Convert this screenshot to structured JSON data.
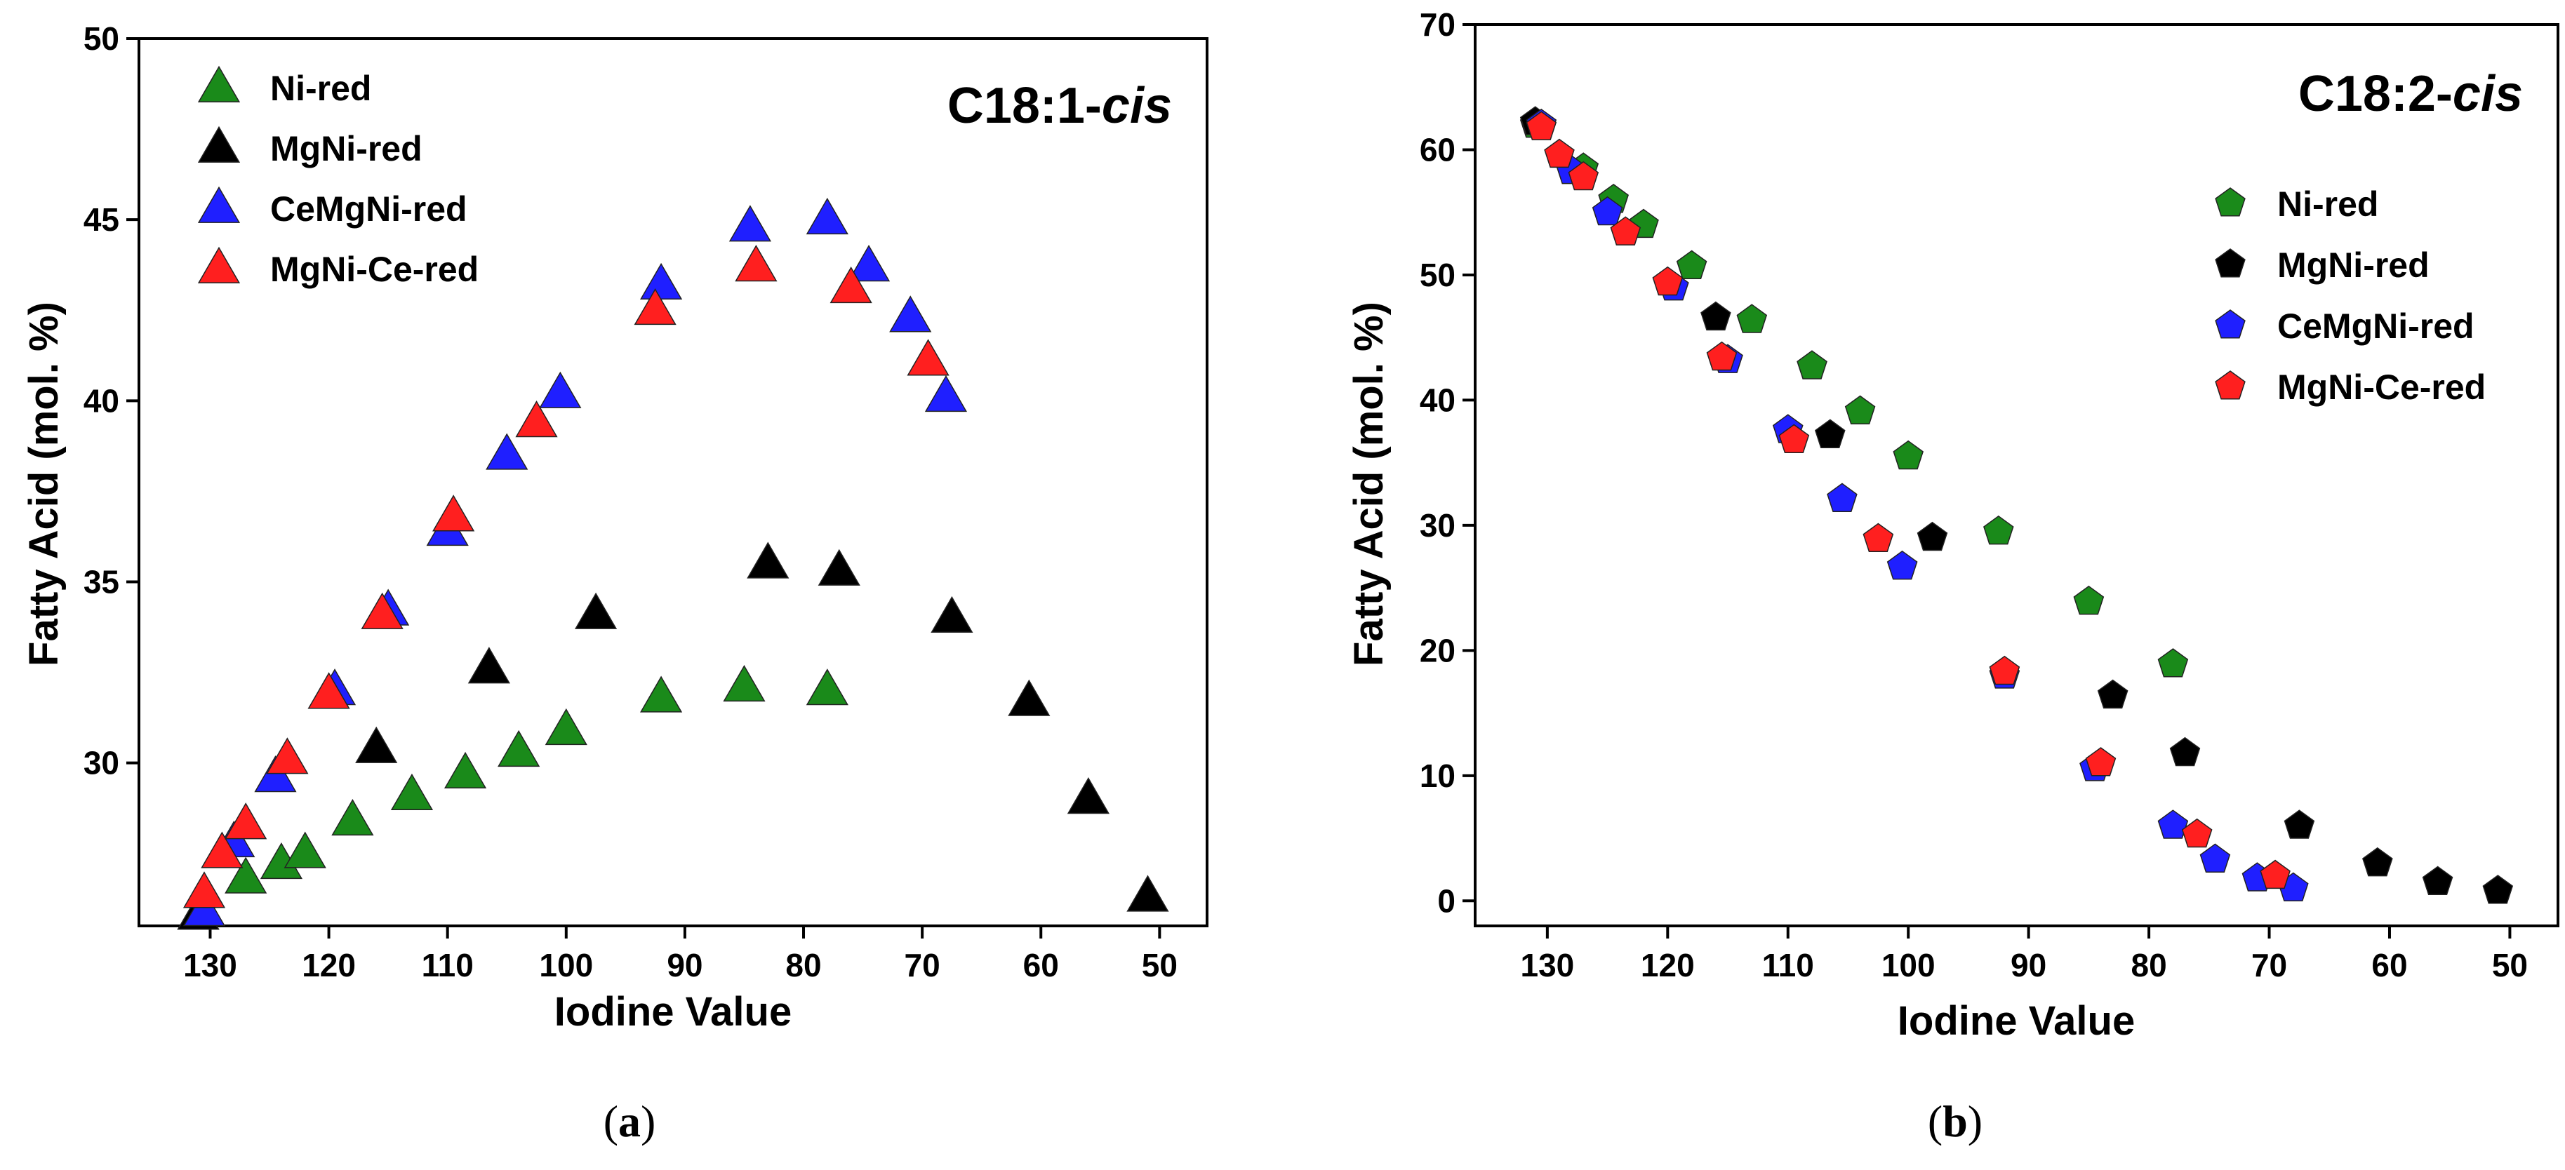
{
  "chart_data": [
    {
      "type": "scatter",
      "panel_label": "a",
      "title_main": "C18:1-",
      "title_italic": "cis",
      "xlabel": "Iodine Value",
      "ylabel": "Fatty Acid (mol. %)",
      "xlim": [
        136,
        46
      ],
      "ylim": [
        25.5,
        50
      ],
      "xticks": [
        130,
        120,
        110,
        100,
        90,
        80,
        70,
        60,
        50
      ],
      "yticks": [
        30,
        35,
        40,
        45,
        50
      ],
      "marker": "triangle",
      "legend_position": "top-left",
      "series": [
        {
          "name": "Ni-red",
          "color": "#1a8a1a",
          "x": [
            131,
            127,
            124,
            122,
            118,
            113,
            108.5,
            104,
            100,
            92,
            85,
            78
          ],
          "y": [
            25.8,
            26.8,
            27.2,
            27.5,
            28.4,
            29.1,
            29.7,
            30.3,
            30.9,
            31.8,
            32.1,
            32.0
          ]
        },
        {
          "name": "MgNi-red",
          "color": "#000000",
          "x": [
            131,
            116,
            106.5,
            97.5,
            83,
            77,
            67.5,
            61,
            56,
            51
          ],
          "y": [
            25.8,
            30.4,
            32.6,
            34.1,
            35.5,
            35.3,
            34.0,
            31.7,
            29.0,
            26.3
          ]
        },
        {
          "name": "CeMgNi-red",
          "color": "#1f1fff",
          "x": [
            130.5,
            128,
            124.5,
            119.5,
            115,
            110,
            105,
            100.5,
            92,
            84.5,
            78,
            74.5,
            71,
            68
          ],
          "y": [
            25.9,
            27.8,
            29.6,
            32.0,
            34.2,
            36.4,
            38.5,
            40.2,
            43.2,
            44.8,
            45.0,
            43.7,
            42.3,
            40.1
          ]
        },
        {
          "name": "MgNi-Ce-red",
          "color": "#ff1f1f",
          "x": [
            130.5,
            129,
            127,
            123.5,
            120,
            115.5,
            109.5,
            102.5,
            92.5,
            84,
            76,
            69.5
          ],
          "y": [
            26.4,
            27.5,
            28.3,
            30.1,
            31.9,
            34.1,
            36.8,
            39.4,
            42.5,
            43.7,
            43.1,
            41.1
          ]
        }
      ]
    },
    {
      "type": "scatter",
      "panel_label": "b",
      "title_main": "C18:2-",
      "title_italic": "cis",
      "xlabel": "Iodine Value",
      "ylabel": "Fatty Acid (mol. %)",
      "xlim": [
        136,
        46
      ],
      "ylim": [
        -2,
        70
      ],
      "xticks": [
        130,
        120,
        110,
        100,
        90,
        80,
        70,
        60,
        50
      ],
      "yticks": [
        0,
        10,
        20,
        30,
        40,
        50,
        60,
        70
      ],
      "marker": "pentagon",
      "legend_position": "center-right",
      "series": [
        {
          "name": "Ni-red",
          "color": "#1a8a1a",
          "x": [
            131,
            127,
            124.5,
            122,
            118,
            113,
            108,
            104,
            100,
            92.5,
            85,
            78
          ],
          "y": [
            62.0,
            58.5,
            56.0,
            54.0,
            50.7,
            46.4,
            42.7,
            39.1,
            35.5,
            29.5,
            23.9,
            18.9
          ]
        },
        {
          "name": "MgNi-red",
          "color": "#000000",
          "x": [
            131,
            116,
            106.5,
            98,
            83,
            77,
            67.5,
            61,
            56,
            51
          ],
          "y": [
            62.2,
            46.6,
            37.2,
            29.0,
            16.4,
            11.8,
            6.0,
            3.0,
            1.5,
            0.8
          ]
        },
        {
          "name": "CeMgNi-red",
          "color": "#1f1fff",
          "x": [
            130.5,
            128,
            125,
            119.5,
            115,
            110,
            105.5,
            100.5,
            92,
            84.5,
            78,
            74.5,
            71,
            68
          ],
          "y": [
            62.0,
            58.3,
            55.0,
            49.0,
            43.2,
            37.6,
            32.1,
            26.7,
            18.0,
            10.6,
            6.0,
            3.3,
            1.8,
            1.0
          ]
        },
        {
          "name": "MgNi-Ce-red",
          "color": "#ff1f1f",
          "x": [
            130.5,
            129,
            127,
            123.5,
            120,
            115.5,
            109.5,
            102.5,
            92,
            84,
            76,
            69.5
          ],
          "y": [
            61.8,
            59.6,
            57.8,
            53.4,
            49.4,
            43.4,
            36.8,
            28.9,
            18.3,
            11.0,
            5.3,
            2.0
          ]
        }
      ]
    }
  ]
}
